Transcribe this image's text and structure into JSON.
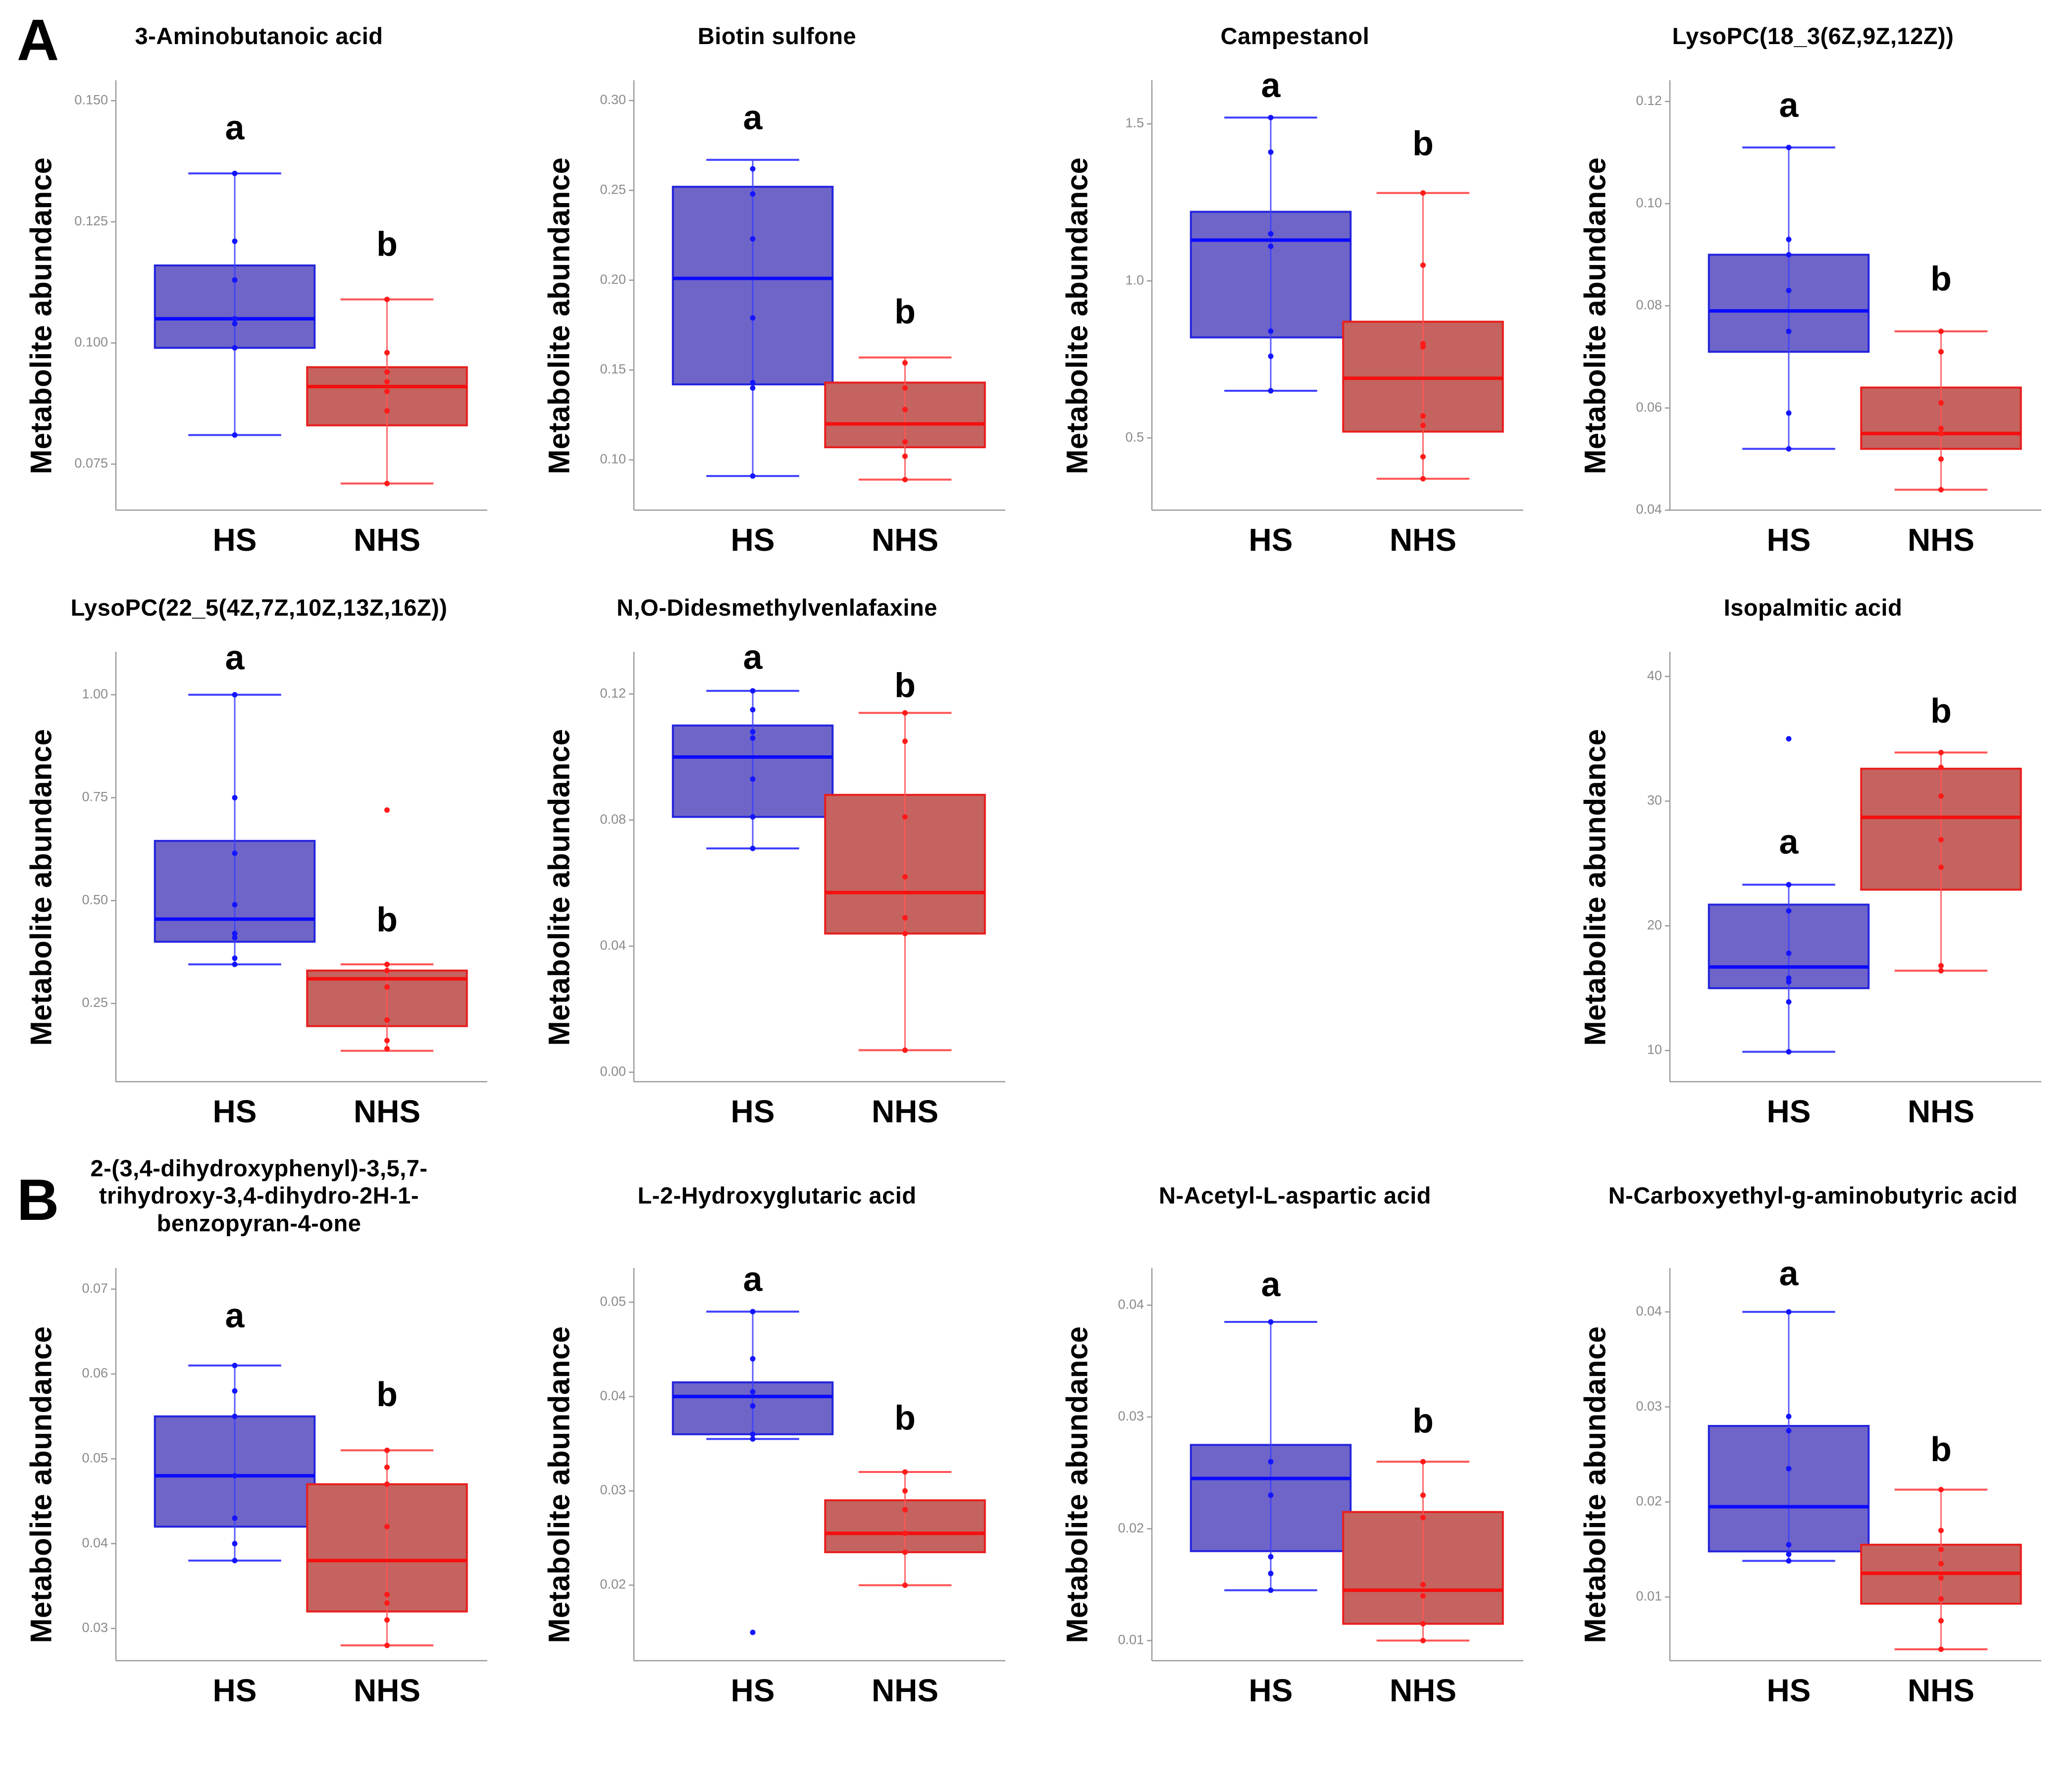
{
  "figure": {
    "background": "#ffffff",
    "ylabel": "Metabolite abundance",
    "categories": [
      "HS",
      "NHS"
    ],
    "colors": {
      "hs": {
        "fill": "#6f65c8",
        "stroke": "#2424dd",
        "line": "#4040ff",
        "median": "#0a0aff",
        "point": "#1414ff"
      },
      "nhs": {
        "fill": "#c4635f",
        "stroke": "#e81e1e",
        "line": "#ff5555",
        "median": "#f50f0f",
        "point": "#ff1a1a"
      }
    },
    "axis_color": "#9a9a9a",
    "tick_label_color": "#8a8a8a"
  },
  "panels": [
    {
      "label": "A"
    },
    {
      "label": "B"
    }
  ],
  "chart_data": [
    {
      "id": "3-aminobutanoic-acid",
      "type": "box",
      "panel": "A",
      "slot": 0,
      "title_lines": [
        "3-Aminobutanoic acid"
      ],
      "ylabel": "Metabolite abundance",
      "ylim": [
        0.0655,
        0.153
      ],
      "yticks": [
        {
          "v": 0.15,
          "label": "0.150"
        },
        {
          "v": 0.125,
          "label": "0.125"
        },
        {
          "v": 0.1,
          "label": "0.100"
        },
        {
          "v": 0.075,
          "label": "0.075"
        }
      ],
      "groups": [
        {
          "name": "HS",
          "letter": "a",
          "letter_y": 0.142,
          "whisker_low": 0.081,
          "q1": 0.099,
          "median": 0.105,
          "q3": 0.116,
          "whisker_high": 0.135,
          "points": [
            0.135,
            0.121,
            0.113,
            0.105,
            0.104,
            0.099,
            0.081
          ],
          "outliers": []
        },
        {
          "name": "NHS",
          "letter": "b",
          "letter_y": 0.118,
          "whisker_low": 0.071,
          "q1": 0.083,
          "median": 0.091,
          "q3": 0.095,
          "whisker_high": 0.109,
          "points": [
            0.109,
            0.098,
            0.094,
            0.092,
            0.09,
            0.086,
            0.071
          ],
          "outliers": []
        }
      ]
    },
    {
      "id": "biotin-sulfone",
      "type": "box",
      "panel": "A",
      "slot": 1,
      "title_lines": [
        "Biotin sulfone"
      ],
      "ylabel": "Metabolite abundance",
      "ylim": [
        0.072,
        0.308
      ],
      "yticks": [
        {
          "v": 0.3,
          "label": "0.30"
        },
        {
          "v": 0.25,
          "label": "0.25"
        },
        {
          "v": 0.2,
          "label": "0.20"
        },
        {
          "v": 0.15,
          "label": "0.15"
        },
        {
          "v": 0.1,
          "label": "0.10"
        }
      ],
      "groups": [
        {
          "name": "HS",
          "letter": "a",
          "letter_y": 0.284,
          "whisker_low": 0.091,
          "q1": 0.142,
          "median": 0.201,
          "q3": 0.252,
          "whisker_high": 0.267,
          "points": [
            0.262,
            0.248,
            0.223,
            0.179,
            0.143,
            0.14,
            0.091
          ],
          "outliers": []
        },
        {
          "name": "NHS",
          "letter": "b",
          "letter_y": 0.176,
          "whisker_low": 0.089,
          "q1": 0.107,
          "median": 0.12,
          "q3": 0.143,
          "whisker_high": 0.157,
          "points": [
            0.154,
            0.14,
            0.128,
            0.11,
            0.102,
            0.089
          ],
          "outliers": []
        }
      ]
    },
    {
      "id": "campestanol",
      "type": "box",
      "panel": "A",
      "slot": 2,
      "title_lines": [
        "Campestanol"
      ],
      "ylabel": "Metabolite abundance",
      "ylim": [
        0.27,
        1.62
      ],
      "yticks": [
        {
          "v": 1.5,
          "label": "1.5"
        },
        {
          "v": 1.0,
          "label": "1.0"
        },
        {
          "v": 0.5,
          "label": "0.5"
        }
      ],
      "groups": [
        {
          "name": "HS",
          "letter": "a",
          "letter_y": 1.585,
          "whisker_low": 0.65,
          "q1": 0.82,
          "median": 1.13,
          "q3": 1.22,
          "whisker_high": 1.52,
          "points": [
            1.52,
            1.41,
            1.15,
            1.11,
            0.84,
            0.76,
            0.65
          ],
          "outliers": []
        },
        {
          "name": "NHS",
          "letter": "b",
          "letter_y": 1.4,
          "whisker_low": 0.37,
          "q1": 0.52,
          "median": 0.69,
          "q3": 0.87,
          "whisker_high": 1.28,
          "points": [
            1.28,
            1.05,
            0.8,
            0.79,
            0.57,
            0.54,
            0.44,
            0.37
          ],
          "outliers": []
        }
      ]
    },
    {
      "id": "lysopc-18-3",
      "type": "box",
      "panel": "A",
      "slot": 3,
      "title_lines": [
        "LysoPC(18_3(6Z,9Z,12Z))"
      ],
      "ylabel": "Metabolite abundance",
      "ylim": [
        0.04,
        0.123
      ],
      "yticks": [
        {
          "v": 0.12,
          "label": "0.12"
        },
        {
          "v": 0.1,
          "label": "0.10"
        },
        {
          "v": 0.08,
          "label": "0.08"
        },
        {
          "v": 0.06,
          "label": "0.06"
        },
        {
          "v": 0.04,
          "label": "0.04"
        }
      ],
      "groups": [
        {
          "name": "HS",
          "letter": "a",
          "letter_y": 0.117,
          "whisker_low": 0.052,
          "q1": 0.071,
          "median": 0.079,
          "q3": 0.09,
          "whisker_high": 0.111,
          "points": [
            0.111,
            0.093,
            0.09,
            0.083,
            0.075,
            0.059,
            0.052
          ],
          "outliers": []
        },
        {
          "name": "NHS",
          "letter": "b",
          "letter_y": 0.083,
          "whisker_low": 0.044,
          "q1": 0.052,
          "median": 0.055,
          "q3": 0.064,
          "whisker_high": 0.075,
          "points": [
            0.075,
            0.071,
            0.061,
            0.056,
            0.055,
            0.05,
            0.044
          ],
          "outliers": []
        }
      ]
    },
    {
      "id": "lysopc-22-5",
      "type": "box",
      "panel": "A",
      "slot": 4,
      "title_lines": [
        "LysoPC(22_5(4Z,7Z,10Z,13Z,16Z))"
      ],
      "ylabel": "Metabolite abundance",
      "ylim": [
        0.06,
        1.09
      ],
      "yticks": [
        {
          "v": 1.0,
          "label": "1.00"
        },
        {
          "v": 0.75,
          "label": "0.75"
        },
        {
          "v": 0.5,
          "label": "0.50"
        },
        {
          "v": 0.25,
          "label": "0.25"
        }
      ],
      "groups": [
        {
          "name": "HS",
          "letter": "a",
          "letter_y": 1.062,
          "whisker_low": 0.345,
          "q1": 0.4,
          "median": 0.455,
          "q3": 0.645,
          "whisker_high": 1.0,
          "points": [
            1.0,
            0.75,
            0.615,
            0.49,
            0.42,
            0.41,
            0.36,
            0.345
          ],
          "outliers": []
        },
        {
          "name": "NHS",
          "letter": "b",
          "letter_y": 0.425,
          "whisker_low": 0.135,
          "q1": 0.195,
          "median": 0.31,
          "q3": 0.33,
          "whisker_high": 0.345,
          "points": [
            0.345,
            0.33,
            0.29,
            0.21,
            0.16,
            0.14
          ],
          "outliers": [
            0.72
          ]
        }
      ]
    },
    {
      "id": "n-o-didesmethylvenlafaxine",
      "type": "box",
      "panel": "A",
      "slot": 5,
      "title_lines": [
        "N,O-Didesmethylvenlafaxine"
      ],
      "ylabel": "Metabolite abundance",
      "ylim": [
        -0.003,
        0.1315
      ],
      "yticks": [
        {
          "v": 0.12,
          "label": "0.12"
        },
        {
          "v": 0.08,
          "label": "0.08"
        },
        {
          "v": 0.04,
          "label": "0.04"
        },
        {
          "v": 0.0,
          "label": "0.00"
        }
      ],
      "groups": [
        {
          "name": "HS",
          "letter": "a",
          "letter_y": 0.128,
          "whisker_low": 0.071,
          "q1": 0.081,
          "median": 0.1,
          "q3": 0.11,
          "whisker_high": 0.121,
          "points": [
            0.121,
            0.115,
            0.108,
            0.106,
            0.093,
            0.081,
            0.071
          ],
          "outliers": []
        },
        {
          "name": "NHS",
          "letter": "b",
          "letter_y": 0.119,
          "whisker_low": 0.007,
          "q1": 0.044,
          "median": 0.057,
          "q3": 0.088,
          "whisker_high": 0.114,
          "points": [
            0.114,
            0.105,
            0.081,
            0.062,
            0.049,
            0.044,
            0.007
          ],
          "outliers": []
        }
      ]
    },
    {
      "id": "isopalmitic-acid",
      "type": "box",
      "panel": "A",
      "slot": 7,
      "title_lines": [
        "Isopalmitic acid"
      ],
      "ylabel": "Metabolite abundance",
      "ylim": [
        7.5,
        41.5
      ],
      "yticks": [
        {
          "v": 40,
          "label": "40"
        },
        {
          "v": 30,
          "label": "30"
        },
        {
          "v": 20,
          "label": "20"
        },
        {
          "v": 10,
          "label": "10"
        }
      ],
      "groups": [
        {
          "name": "HS",
          "letter": "a",
          "letter_y": 25.8,
          "whisker_low": 9.9,
          "q1": 15.0,
          "median": 16.7,
          "q3": 21.7,
          "whisker_high": 23.3,
          "points": [
            23.3,
            21.2,
            17.8,
            15.8,
            15.5,
            13.9,
            9.9
          ],
          "outliers": [
            35.0
          ]
        },
        {
          "name": "NHS",
          "letter": "b",
          "letter_y": 36.3,
          "whisker_low": 16.4,
          "q1": 22.9,
          "median": 28.7,
          "q3": 32.6,
          "whisker_high": 33.9,
          "points": [
            33.9,
            32.7,
            30.4,
            26.9,
            24.7,
            16.8,
            16.4
          ],
          "outliers": []
        }
      ]
    },
    {
      "id": "dihydroxyphenyl-benzopyranone",
      "type": "box",
      "panel": "B",
      "slot": 0,
      "title_lines": [
        "2-(3,4-dihydroxyphenyl)-3,5,7-",
        "trihydroxy-3,4-dihydro-2H-1-",
        "benzopyran-4-one"
      ],
      "ylabel": "Metabolite abundance",
      "ylim": [
        0.0262,
        0.0718
      ],
      "yticks": [
        {
          "v": 0.07,
          "label": "0.07"
        },
        {
          "v": 0.06,
          "label": "0.06"
        },
        {
          "v": 0.05,
          "label": "0.05"
        },
        {
          "v": 0.04,
          "label": "0.04"
        },
        {
          "v": 0.03,
          "label": "0.03"
        }
      ],
      "groups": [
        {
          "name": "HS",
          "letter": "a",
          "letter_y": 0.0655,
          "whisker_low": 0.038,
          "q1": 0.042,
          "median": 0.048,
          "q3": 0.055,
          "whisker_high": 0.061,
          "points": [
            0.061,
            0.058,
            0.055,
            0.048,
            0.043,
            0.04,
            0.038
          ],
          "outliers": []
        },
        {
          "name": "NHS",
          "letter": "b",
          "letter_y": 0.0562,
          "whisker_low": 0.028,
          "q1": 0.032,
          "median": 0.038,
          "q3": 0.047,
          "whisker_high": 0.051,
          "points": [
            0.051,
            0.049,
            0.047,
            0.042,
            0.034,
            0.033,
            0.031,
            0.028
          ],
          "outliers": []
        }
      ]
    },
    {
      "id": "l-2-hydroxyglutaric-acid",
      "type": "box",
      "panel": "B",
      "slot": 1,
      "title_lines": [
        "L-2-Hydroxyglutaric acid"
      ],
      "ylabel": "Metabolite abundance",
      "ylim": [
        0.012,
        0.053
      ],
      "yticks": [
        {
          "v": 0.05,
          "label": "0.05"
        },
        {
          "v": 0.04,
          "label": "0.04"
        },
        {
          "v": 0.03,
          "label": "0.03"
        },
        {
          "v": 0.02,
          "label": "0.02"
        }
      ],
      "groups": [
        {
          "name": "HS",
          "letter": "a",
          "letter_y": 0.0512,
          "whisker_low": 0.0355,
          "q1": 0.036,
          "median": 0.04,
          "q3": 0.0415,
          "whisker_high": 0.049,
          "points": [
            0.049,
            0.044,
            0.0405,
            0.039,
            0.036,
            0.0355
          ],
          "outliers": [
            0.015
          ]
        },
        {
          "name": "NHS",
          "letter": "b",
          "letter_y": 0.0365,
          "whisker_low": 0.02,
          "q1": 0.0235,
          "median": 0.0255,
          "q3": 0.029,
          "whisker_high": 0.032,
          "points": [
            0.032,
            0.03,
            0.028,
            0.0255,
            0.0235,
            0.02
          ],
          "outliers": []
        }
      ]
    },
    {
      "id": "n-acetyl-l-aspartic-acid",
      "type": "box",
      "panel": "B",
      "slot": 2,
      "title_lines": [
        "N-Acetyl-L-aspartic acid"
      ],
      "ylabel": "Metabolite abundance",
      "ylim": [
        0.0082,
        0.0428
      ],
      "yticks": [
        {
          "v": 0.04,
          "label": "0.04"
        },
        {
          "v": 0.03,
          "label": "0.03"
        },
        {
          "v": 0.02,
          "label": "0.02"
        },
        {
          "v": 0.01,
          "label": "0.01"
        }
      ],
      "groups": [
        {
          "name": "HS",
          "letter": "a",
          "letter_y": 0.0408,
          "whisker_low": 0.0145,
          "q1": 0.018,
          "median": 0.0245,
          "q3": 0.0275,
          "whisker_high": 0.0385,
          "points": [
            0.0385,
            0.026,
            0.023,
            0.0175,
            0.016,
            0.0145
          ],
          "outliers": []
        },
        {
          "name": "NHS",
          "letter": "b",
          "letter_y": 0.0286,
          "whisker_low": 0.01,
          "q1": 0.0115,
          "median": 0.0145,
          "q3": 0.0215,
          "whisker_high": 0.026,
          "points": [
            0.026,
            0.023,
            0.021,
            0.015,
            0.014,
            0.0115,
            0.01
          ],
          "outliers": []
        }
      ]
    },
    {
      "id": "n-carboxyethyl-g-aminobutyric-acid",
      "type": "box",
      "panel": "B",
      "slot": 3,
      "title_lines": [
        "N-Carboxyethyl-g-aminobutyric acid"
      ],
      "ylabel": "Metabolite abundance",
      "ylim": [
        0.0033,
        0.044
      ],
      "yticks": [
        {
          "v": 0.04,
          "label": "0.04"
        },
        {
          "v": 0.03,
          "label": "0.03"
        },
        {
          "v": 0.02,
          "label": "0.02"
        },
        {
          "v": 0.01,
          "label": "0.01"
        }
      ],
      "groups": [
        {
          "name": "HS",
          "letter": "a",
          "letter_y": 0.0428,
          "whisker_low": 0.0138,
          "q1": 0.0148,
          "median": 0.0195,
          "q3": 0.028,
          "whisker_high": 0.04,
          "points": [
            0.04,
            0.029,
            0.0275,
            0.0235,
            0.0155,
            0.0145,
            0.0138
          ],
          "outliers": []
        },
        {
          "name": "NHS",
          "letter": "b",
          "letter_y": 0.0243,
          "whisker_low": 0.0045,
          "q1": 0.0093,
          "median": 0.0125,
          "q3": 0.0155,
          "whisker_high": 0.0213,
          "points": [
            0.0213,
            0.017,
            0.015,
            0.0135,
            0.012,
            0.0098,
            0.0075,
            0.0045
          ],
          "outliers": []
        }
      ]
    }
  ]
}
